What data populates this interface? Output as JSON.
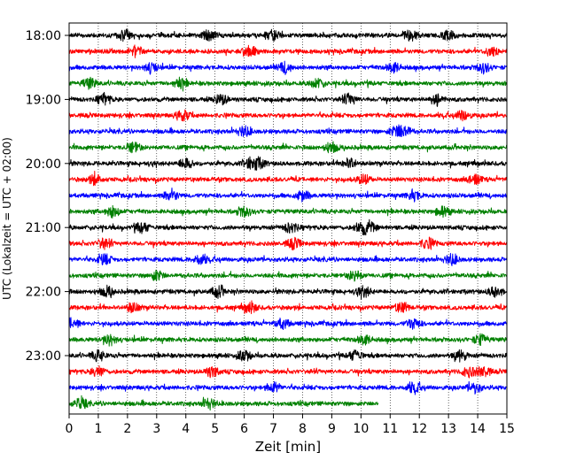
{
  "chart_data": {
    "type": "line",
    "title": "",
    "xlabel": "Zeit  [min]",
    "ylabel": "UTC (Lokalzeit = UTC + 02:00)",
    "xlim": [
      0,
      15
    ],
    "x_ticks": [
      0,
      1,
      2,
      3,
      4,
      5,
      6,
      7,
      8,
      9,
      10,
      11,
      12,
      13,
      14,
      15
    ],
    "x_tick_labels": [
      "0",
      "1",
      "2",
      "3",
      "4",
      "5",
      "6",
      "7",
      "8",
      "9",
      "10",
      "11",
      "12",
      "13",
      "14",
      "15"
    ],
    "grid": "vertical dotted at each x tick",
    "trace_interval_min": 15,
    "hour_labels": [
      {
        "label": "18:00",
        "trace_index": 0
      },
      {
        "label": "19:00",
        "trace_index": 4
      },
      {
        "label": "20:00",
        "trace_index": 8
      },
      {
        "label": "21:00",
        "trace_index": 12
      },
      {
        "label": "22:00",
        "trace_index": 16
      },
      {
        "label": "23:00",
        "trace_index": 20
      }
    ],
    "color_cycle": [
      "#000000",
      "#ff0000",
      "#0000ff",
      "#008000"
    ],
    "traces": [
      {
        "start": "18:00",
        "end_min": 15,
        "color": "#000000",
        "spikes": [
          1.9,
          4.8,
          7.0,
          11.7,
          13.0
        ]
      },
      {
        "start": "18:15",
        "end_min": 15,
        "color": "#ff0000",
        "spikes": [
          2.3,
          6.2,
          14.5
        ]
      },
      {
        "start": "18:30",
        "end_min": 15,
        "color": "#0000ff",
        "spikes": [
          2.8,
          7.4,
          11.1,
          14.2
        ]
      },
      {
        "start": "18:45",
        "end_min": 15,
        "color": "#008000",
        "spikes": [
          0.7,
          3.8,
          8.5
        ]
      },
      {
        "start": "19:00",
        "end_min": 15,
        "color": "#000000",
        "spikes": [
          1.2,
          5.2,
          9.6,
          12.6
        ]
      },
      {
        "start": "19:15",
        "end_min": 15,
        "color": "#ff0000",
        "spikes": [
          3.9,
          13.5
        ]
      },
      {
        "start": "19:30",
        "end_min": 15,
        "color": "#0000ff",
        "spikes": [
          6.0,
          11.2,
          11.5
        ]
      },
      {
        "start": "19:45",
        "end_min": 15,
        "color": "#008000",
        "spikes": [
          2.2,
          9.0
        ]
      },
      {
        "start": "20:00",
        "end_min": 15,
        "color": "#000000",
        "spikes": [
          4.0,
          6.2,
          6.5,
          9.6
        ]
      },
      {
        "start": "20:15",
        "end_min": 15,
        "color": "#ff0000",
        "spikes": [
          0.9,
          10.1,
          13.9
        ]
      },
      {
        "start": "20:30",
        "end_min": 15,
        "color": "#0000ff",
        "spikes": [
          3.5,
          8.0,
          11.8
        ]
      },
      {
        "start": "20:45",
        "end_min": 15,
        "color": "#008000",
        "spikes": [
          1.5,
          6.0,
          12.8
        ]
      },
      {
        "start": "21:00",
        "end_min": 15,
        "color": "#000000",
        "spikes": [
          2.5,
          7.6,
          10.0,
          10.3
        ]
      },
      {
        "start": "21:15",
        "end_min": 15,
        "color": "#ff0000",
        "spikes": [
          1.2,
          7.7,
          12.3
        ]
      },
      {
        "start": "21:30",
        "end_min": 15,
        "color": "#0000ff",
        "spikes": [
          1.2,
          4.5,
          13.1
        ]
      },
      {
        "start": "21:45",
        "end_min": 15,
        "color": "#008000",
        "spikes": [
          3.0,
          9.8
        ]
      },
      {
        "start": "22:00",
        "end_min": 15,
        "color": "#000000",
        "spikes": [
          1.3,
          5.1,
          10.1,
          14.6
        ]
      },
      {
        "start": "22:15",
        "end_min": 15,
        "color": "#ff0000",
        "spikes": [
          2.2,
          6.2,
          11.4
        ]
      },
      {
        "start": "22:30",
        "end_min": 15,
        "color": "#0000ff",
        "spikes": [
          0.1,
          7.3,
          11.8
        ]
      },
      {
        "start": "22:45",
        "end_min": 15,
        "color": "#008000",
        "spikes": [
          1.4,
          10.1,
          14.1
        ]
      },
      {
        "start": "23:00",
        "end_min": 15,
        "color": "#000000",
        "spikes": [
          1.0,
          6.0,
          9.8,
          13.4
        ]
      },
      {
        "start": "23:15",
        "end_min": 15,
        "color": "#ff0000",
        "spikes": [
          1.0,
          4.9,
          13.7,
          14.2
        ]
      },
      {
        "start": "23:30",
        "end_min": 15,
        "color": "#0000ff",
        "spikes": [
          7.0,
          11.8,
          13.9
        ]
      },
      {
        "start": "23:45",
        "end_min": 10.6,
        "color": "#008000",
        "spikes": [
          0.4,
          4.8
        ]
      }
    ]
  }
}
